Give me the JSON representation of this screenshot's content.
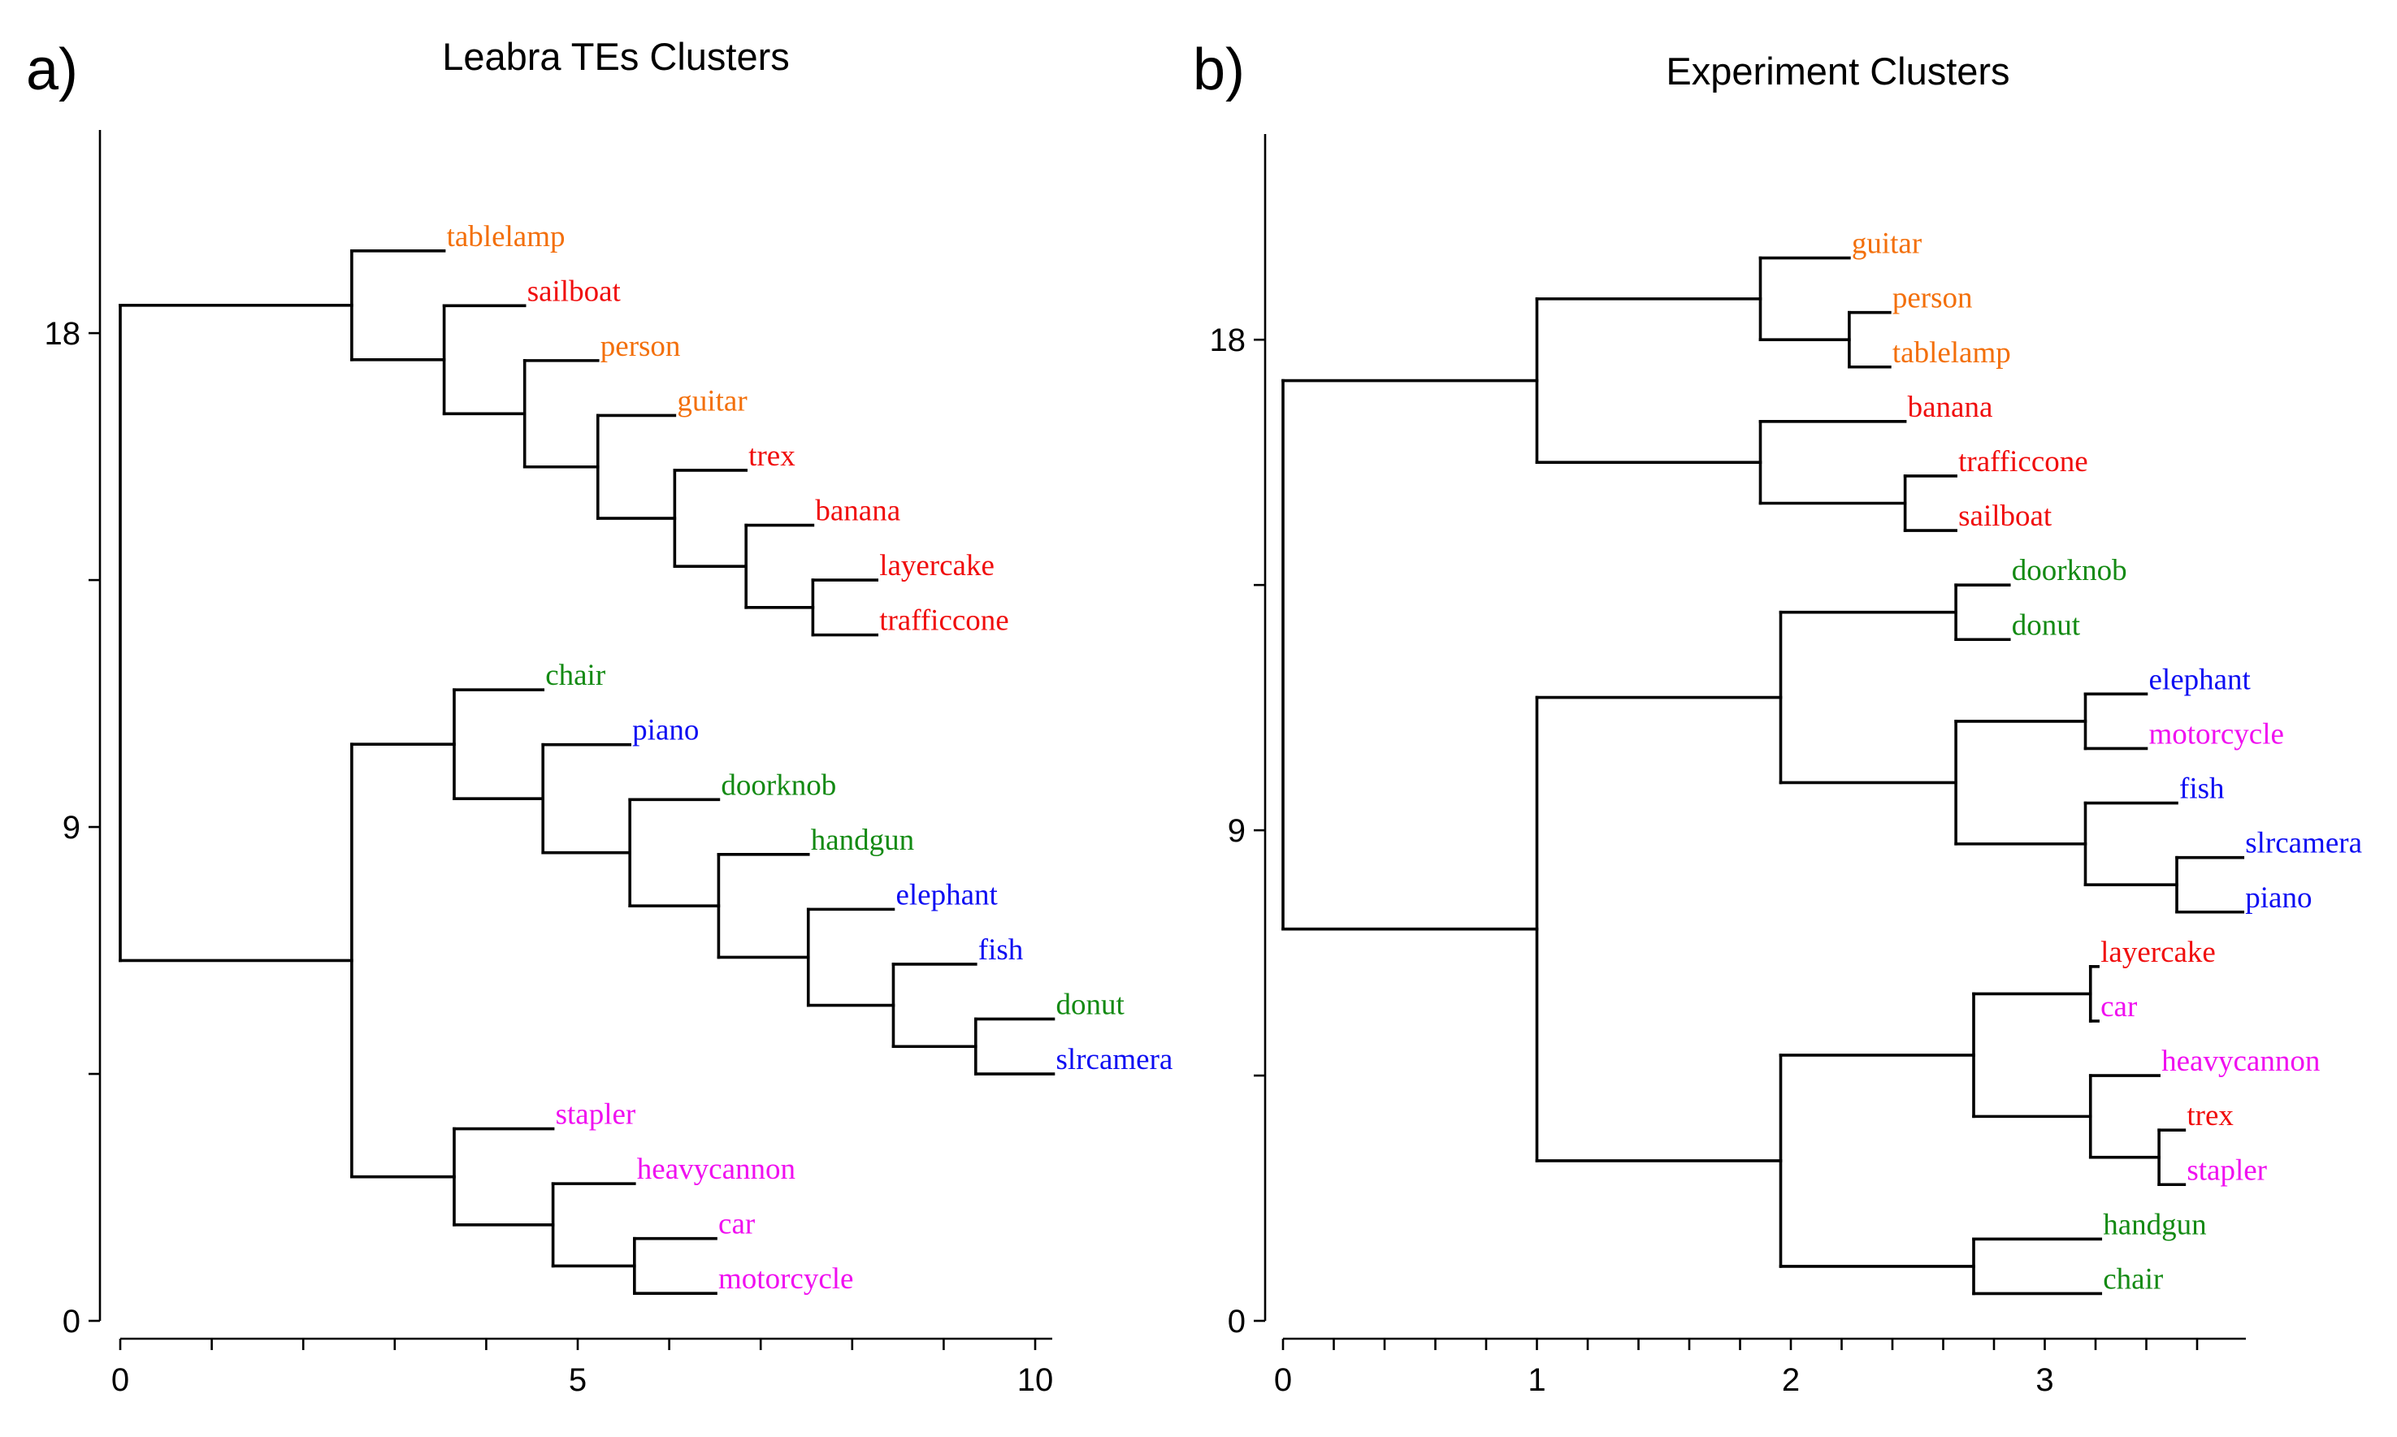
{
  "figure": {
    "colors": {
      "orange": "#f36f0a",
      "red": "#f00d0d",
      "green": "#138a13",
      "blue": "#0d0df2",
      "magenta": "#f00ff0",
      "line": "#000000"
    }
  },
  "chart_data": [
    {
      "type": "dendrogram",
      "panel_label": "a)",
      "title": "Leabra TEs Clusters",
      "xlabel": "",
      "ylabel": "",
      "xlim": [
        0,
        10.2
      ],
      "ylim": [
        0,
        18
      ],
      "x_ticks": [
        0,
        1,
        2,
        3,
        4,
        5,
        6,
        7,
        8,
        9,
        10
      ],
      "x_tick_labels": [
        "0",
        "",
        "",
        "",
        "",
        "5",
        "",
        "",
        "",
        "",
        "10"
      ],
      "y_ticks": [
        0,
        4.5,
        9,
        13.5,
        18
      ],
      "y_tick_labels": [
        "0",
        "",
        "9",
        "",
        "18"
      ],
      "leaves": [
        {
          "name": "tablelamp",
          "color": "orange",
          "pos": 19.5
        },
        {
          "name": "sailboat",
          "color": "red",
          "pos": 18.5
        },
        {
          "name": "person",
          "color": "orange",
          "pos": 17.5
        },
        {
          "name": "guitar",
          "color": "orange",
          "pos": 16.5
        },
        {
          "name": "trex",
          "color": "red",
          "pos": 15.5
        },
        {
          "name": "banana",
          "color": "red",
          "pos": 14.5
        },
        {
          "name": "layercake",
          "color": "red",
          "pos": 13.5
        },
        {
          "name": "trafficcone",
          "color": "red",
          "pos": 12.5
        },
        {
          "name": "chair",
          "color": "green",
          "pos": 11.5
        },
        {
          "name": "piano",
          "color": "blue",
          "pos": 10.5
        },
        {
          "name": "doorknob",
          "color": "green",
          "pos": 9.5
        },
        {
          "name": "handgun",
          "color": "green",
          "pos": 8.5
        },
        {
          "name": "elephant",
          "color": "blue",
          "pos": 7.5
        },
        {
          "name": "fish",
          "color": "blue",
          "pos": 6.5
        },
        {
          "name": "donut",
          "color": "green",
          "pos": 5.5
        },
        {
          "name": "slrcamera",
          "color": "blue",
          "pos": 4.5
        },
        {
          "name": "stapler",
          "color": "magenta",
          "pos": 3.5
        },
        {
          "name": "heavycannon",
          "color": "magenta",
          "pos": 2.5
        },
        {
          "name": "car",
          "color": "magenta",
          "pos": 1.5
        },
        {
          "name": "motorcycle",
          "color": "magenta",
          "pos": 0.5
        }
      ],
      "tree": {
        "h": 0,
        "c": [
          {
            "h": 2.53,
            "c": [
              {
                "leaf": "tablelamp",
                "h": 3.54
              },
              {
                "h": 3.54,
                "c": [
                  {
                    "leaf": "sailboat",
                    "h": 4.42
                  },
                  {
                    "h": 4.42,
                    "c": [
                      {
                        "leaf": "person",
                        "h": 5.22
                      },
                      {
                        "h": 5.22,
                        "c": [
                          {
                            "leaf": "guitar",
                            "h": 6.06
                          },
                          {
                            "h": 6.06,
                            "c": [
                              {
                                "leaf": "trex",
                                "h": 6.84
                              },
                              {
                                "h": 6.84,
                                "c": [
                                  {
                                    "leaf": "banana",
                                    "h": 7.57
                                  },
                                  {
                                    "h": 7.57,
                                    "c": [
                                      {
                                        "leaf": "layercake",
                                        "h": 8.27
                                      },
                                      {
                                        "leaf": "trafficcone",
                                        "h": 8.27
                                      }
                                    ]
                                  }
                                ]
                              }
                            ]
                          }
                        ]
                      }
                    ]
                  }
                ]
              }
            ]
          },
          {
            "h": 2.53,
            "c": [
              {
                "h": 3.65,
                "c": [
                  {
                    "leaf": "chair",
                    "h": 4.62
                  },
                  {
                    "h": 4.62,
                    "c": [
                      {
                        "leaf": "piano",
                        "h": 5.57
                      },
                      {
                        "h": 5.57,
                        "c": [
                          {
                            "leaf": "doorknob",
                            "h": 6.54
                          },
                          {
                            "h": 6.54,
                            "c": [
                              {
                                "leaf": "handgun",
                                "h": 7.52
                              },
                              {
                                "h": 7.52,
                                "c": [
                                  {
                                    "leaf": "elephant",
                                    "h": 8.45
                                  },
                                  {
                                    "h": 8.45,
                                    "c": [
                                      {
                                        "leaf": "fish",
                                        "h": 9.35
                                      },
                                      {
                                        "h": 9.35,
                                        "c": [
                                          {
                                            "leaf": "donut",
                                            "h": 10.2
                                          },
                                          {
                                            "leaf": "slrcamera",
                                            "h": 10.2
                                          }
                                        ]
                                      }
                                    ]
                                  }
                                ]
                              }
                            ]
                          }
                        ]
                      }
                    ]
                  }
                ]
              },
              {
                "h": 3.65,
                "c": [
                  {
                    "leaf": "stapler",
                    "h": 4.73
                  },
                  {
                    "h": 4.73,
                    "c": [
                      {
                        "leaf": "heavycannon",
                        "h": 5.62
                      },
                      {
                        "h": 5.62,
                        "c": [
                          {
                            "leaf": "car",
                            "h": 6.51
                          },
                          {
                            "leaf": "motorcycle",
                            "h": 6.51
                          }
                        ]
                      }
                    ]
                  }
                ]
              }
            ]
          }
        ]
      }
    },
    {
      "type": "dendrogram",
      "panel_label": "b)",
      "title": "Experiment Clusters",
      "xlabel": "",
      "ylabel": "",
      "xlim": [
        0,
        3.8
      ],
      "ylim": [
        0,
        18
      ],
      "x_ticks": [
        0,
        0.2,
        0.4,
        0.6,
        0.8,
        1,
        1.2,
        1.4,
        1.6,
        1.8,
        2,
        2.2,
        2.4,
        2.6,
        2.8,
        3,
        3.2,
        3.4,
        3.6
      ],
      "x_tick_labels": [
        "0",
        "",
        "",
        "",
        "",
        "1",
        "",
        "",
        "",
        "",
        "2",
        "",
        "",
        "",
        "",
        "3",
        "",
        "",
        ""
      ],
      "y_ticks": [
        0,
        4.5,
        9,
        13.5,
        18
      ],
      "y_tick_labels": [
        "0",
        "",
        "9",
        "",
        "18"
      ],
      "leaves": [
        {
          "name": "guitar",
          "color": "orange",
          "pos": 19.5
        },
        {
          "name": "person",
          "color": "orange",
          "pos": 18.5
        },
        {
          "name": "tablelamp",
          "color": "orange",
          "pos": 17.5
        },
        {
          "name": "banana",
          "color": "red",
          "pos": 16.5
        },
        {
          "name": "trafficcone",
          "color": "red",
          "pos": 15.5
        },
        {
          "name": "sailboat",
          "color": "red",
          "pos": 14.5
        },
        {
          "name": "doorknob",
          "color": "green",
          "pos": 13.5
        },
        {
          "name": "donut",
          "color": "green",
          "pos": 12.5
        },
        {
          "name": "elephant",
          "color": "blue",
          "pos": 11.5
        },
        {
          "name": "motorcycle",
          "color": "magenta",
          "pos": 10.5
        },
        {
          "name": "fish",
          "color": "blue",
          "pos": 9.5
        },
        {
          "name": "slrcamera",
          "color": "blue",
          "pos": 8.5
        },
        {
          "name": "piano",
          "color": "blue",
          "pos": 7.5
        },
        {
          "name": "layercake",
          "color": "red",
          "pos": 6.5
        },
        {
          "name": "car",
          "color": "magenta",
          "pos": 5.5
        },
        {
          "name": "heavycannon",
          "color": "magenta",
          "pos": 4.5
        },
        {
          "name": "trex",
          "color": "red",
          "pos": 3.5
        },
        {
          "name": "stapler",
          "color": "magenta",
          "pos": 2.5
        },
        {
          "name": "handgun",
          "color": "green",
          "pos": 1.5
        },
        {
          "name": "chair",
          "color": "green",
          "pos": 0.5
        }
      ],
      "tree": {
        "h": 0,
        "c": [
          {
            "h": 1.0,
            "c": [
              {
                "h": 1.88,
                "c": [
                  {
                    "leaf": "guitar",
                    "h": 2.23
                  },
                  {
                    "h": 2.23,
                    "c": [
                      {
                        "leaf": "person",
                        "h": 2.39
                      },
                      {
                        "leaf": "tablelamp",
                        "h": 2.39
                      }
                    ]
                  }
                ]
              },
              {
                "h": 1.88,
                "c": [
                  {
                    "leaf": "banana",
                    "h": 2.45
                  },
                  {
                    "h": 2.45,
                    "c": [
                      {
                        "leaf": "trafficcone",
                        "h": 2.65
                      },
                      {
                        "leaf": "sailboat",
                        "h": 2.65
                      }
                    ]
                  }
                ]
              }
            ]
          },
          {
            "h": 1.0,
            "c": [
              {
                "h": 1.96,
                "c": [
                  {
                    "h": 2.65,
                    "c": [
                      {
                        "leaf": "doorknob",
                        "h": 2.86
                      },
                      {
                        "leaf": "donut",
                        "h": 2.86
                      }
                    ]
                  },
                  {
                    "h": 2.65,
                    "c": [
                      {
                        "h": 3.16,
                        "c": [
                          {
                            "leaf": "elephant",
                            "h": 3.4
                          },
                          {
                            "leaf": "motorcycle",
                            "h": 3.4
                          }
                        ]
                      },
                      {
                        "h": 3.16,
                        "c": [
                          {
                            "leaf": "fish",
                            "h": 3.52
                          },
                          {
                            "h": 3.52,
                            "c": [
                              {
                                "leaf": "slrcamera",
                                "h": 3.78
                              },
                              {
                                "leaf": "piano",
                                "h": 3.78
                              }
                            ]
                          }
                        ]
                      }
                    ]
                  }
                ]
              },
              {
                "h": 1.96,
                "c": [
                  {
                    "h": 2.72,
                    "c": [
                      {
                        "h": 3.18,
                        "c": [
                          {
                            "leaf": "layercake",
                            "h": 3.21
                          },
                          {
                            "leaf": "car",
                            "h": 3.21
                          }
                        ]
                      },
                      {
                        "h": 3.18,
                        "c": [
                          {
                            "leaf": "heavycannon",
                            "h": 3.45
                          },
                          {
                            "h": 3.45,
                            "c": [
                              {
                                "leaf": "trex",
                                "h": 3.55
                              },
                              {
                                "leaf": "stapler",
                                "h": 3.55
                              }
                            ]
                          }
                        ]
                      }
                    ]
                  },
                  {
                    "h": 2.72,
                    "c": [
                      {
                        "leaf": "handgun",
                        "h": 3.22
                      },
                      {
                        "leaf": "chair",
                        "h": 3.22
                      }
                    ]
                  }
                ]
              }
            ]
          }
        ]
      }
    }
  ]
}
